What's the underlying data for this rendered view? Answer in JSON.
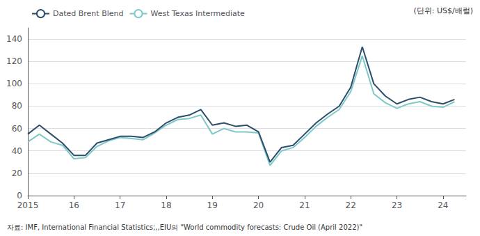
{
  "chart_data": {
    "type": "line",
    "annotations": [
      "(단위: US$/배럴)",
      "자료: IMF, International Financial Statistics;,,EIU의 \"World commodity forecasts: Crude Oil (April 2022)\""
    ],
    "x": [
      2015.0,
      2015.25,
      2015.5,
      2015.75,
      2016.0,
      2016.25,
      2016.5,
      2016.75,
      2017.0,
      2017.25,
      2017.5,
      2017.75,
      2018.0,
      2018.25,
      2018.5,
      2018.75,
      2019.0,
      2019.25,
      2019.5,
      2019.75,
      2020.0,
      2020.25,
      2020.5,
      2020.75,
      2021.0,
      2021.25,
      2021.5,
      2021.75,
      2022.0,
      2022.25,
      2022.5,
      2022.75,
      2023.0,
      2023.25,
      2023.5,
      2023.75,
      2024.0,
      2024.25
    ],
    "series": [
      {
        "name": "Dated Brent Blend",
        "color": "#2e4d6b",
        "values": [
          55,
          63,
          55,
          47,
          36,
          36,
          47,
          50,
          53,
          53,
          52,
          57,
          65,
          70,
          72,
          77,
          63,
          65,
          62,
          63,
          57,
          30,
          43,
          45,
          55,
          65,
          73,
          80,
          97,
          133,
          100,
          89,
          82,
          86,
          88,
          84,
          82,
          86
        ]
      },
      {
        "name": "West Texas Intermediate",
        "color": "#7ec8c8",
        "values": [
          48,
          55,
          48,
          45,
          33,
          34,
          44,
          49,
          52,
          51,
          50,
          56,
          63,
          68,
          69,
          72,
          55,
          60,
          57,
          57,
          56,
          27,
          40,
          43,
          52,
          62,
          70,
          77,
          93,
          125,
          91,
          83,
          78,
          82,
          84,
          80,
          79,
          84
        ]
      }
    ],
    "xlim": [
      2015,
      2024.5
    ],
    "xticks": [
      2015,
      {
        "value": 2016,
        "label": "16"
      },
      {
        "value": 2017,
        "label": "17"
      },
      {
        "value": 2018,
        "label": "18"
      },
      {
        "value": 2019,
        "label": "19"
      },
      {
        "value": 2020,
        "label": "20"
      },
      {
        "value": 2021,
        "label": "21"
      },
      {
        "value": 2022,
        "label": "22"
      },
      {
        "value": 2023,
        "label": "23"
      },
      {
        "value": 2024,
        "label": "24"
      }
    ],
    "ylim": [
      0,
      150
    ],
    "yticks": [
      0,
      20,
      40,
      60,
      80,
      100,
      120,
      140
    ],
    "grid": true,
    "legend": "upper left"
  }
}
